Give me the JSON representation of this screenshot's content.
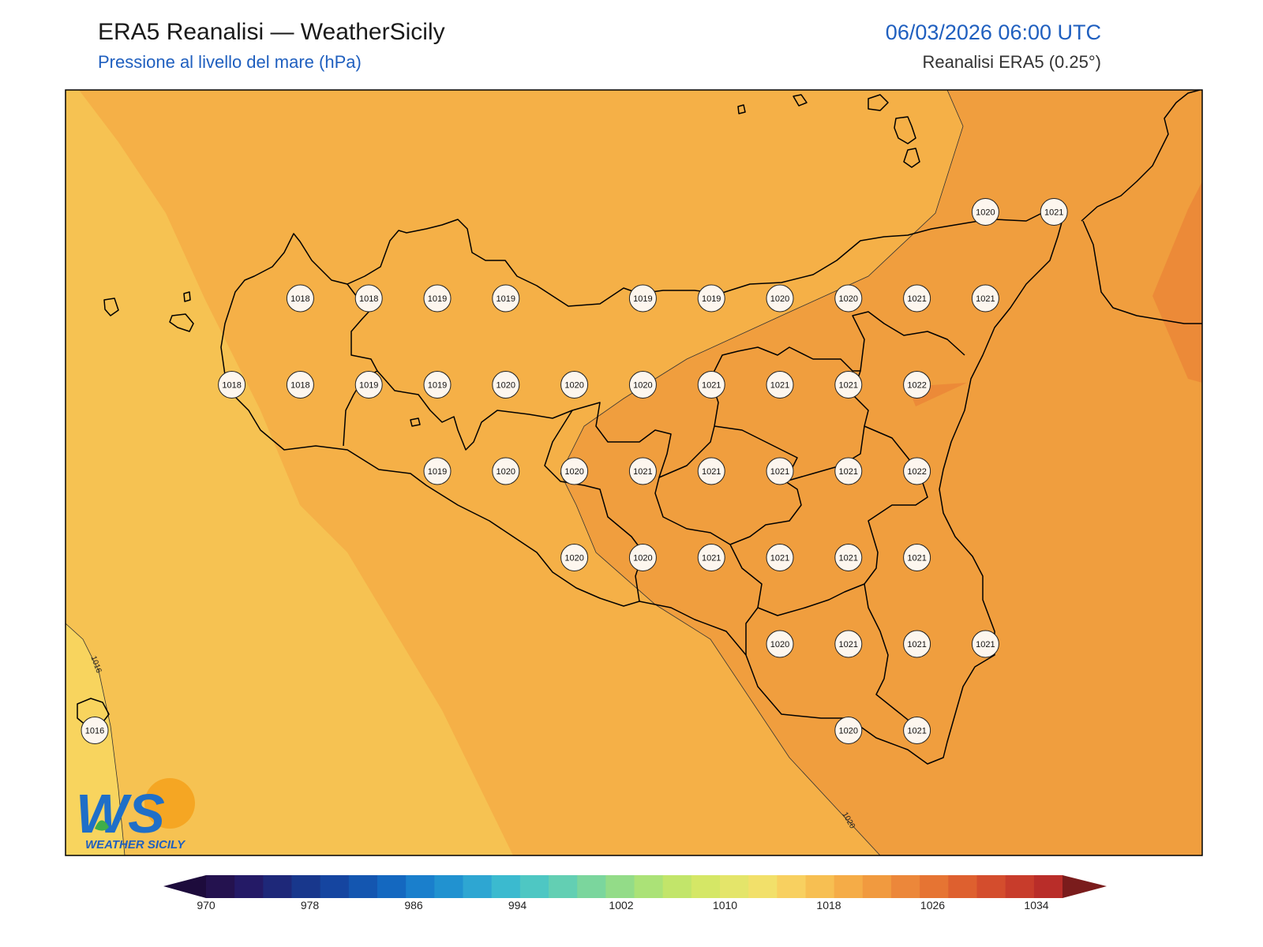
{
  "header": {
    "title": "ERA5 Reanalisi — WeatherSicily",
    "subtitle": "Pressione al livello del mare (hPa)",
    "datetime": "06/03/2026 06:00 UTC",
    "source": "Reanalisi ERA5 (0.25°)"
  },
  "logo": {
    "letters": "WS",
    "text": "WEATHER SICILY"
  },
  "colorbar": {
    "ticks": [
      "970",
      "978",
      "986",
      "994",
      "1002",
      "1010",
      "1018",
      "1026",
      "1034"
    ],
    "colors": [
      "#24124f",
      "#241a66",
      "#1e2879",
      "#18378c",
      "#1545a0",
      "#1456b0",
      "#1468c0",
      "#1a7fcc",
      "#2192d0",
      "#2ea6d2",
      "#3bbacf",
      "#4ec7c3",
      "#63cfb3",
      "#7bd69d",
      "#93dc88",
      "#abe277",
      "#c2e56a",
      "#d5e766",
      "#e4e56a",
      "#f2e06a",
      "#f8d060",
      "#f7bf52",
      "#f5ac47",
      "#f19a3f",
      "#ec873a",
      "#e67433",
      "#de602f",
      "#d44d2d",
      "#c83c2b",
      "#b92d29"
    ],
    "under_color": "#1d0b3c",
    "over_color": "#7a1c1c"
  },
  "map": {
    "contour_labels": [
      "1016",
      "1020"
    ],
    "stations": [
      {
        "value": "1018",
        "row": 0,
        "col": 3
      },
      {
        "value": "1018",
        "row": 0,
        "col": 4
      },
      {
        "value": "1019",
        "row": 0,
        "col": 5
      },
      {
        "value": "1019",
        "row": 0,
        "col": 6
      },
      {
        "value": "1019",
        "row": 0,
        "col": 8
      },
      {
        "value": "1019",
        "row": 0,
        "col": 9
      },
      {
        "value": "1020",
        "row": 0,
        "col": 10
      },
      {
        "value": "1020",
        "row": 0,
        "col": 11
      },
      {
        "value": "1021",
        "row": 0,
        "col": 12
      },
      {
        "value": "1021",
        "row": 0,
        "col": 13
      },
      {
        "value": "1020",
        "row": -1,
        "col": 13
      },
      {
        "value": "1021",
        "row": -1,
        "col": 14
      },
      {
        "value": "1018",
        "row": 1,
        "col": 2
      },
      {
        "value": "1018",
        "row": 1,
        "col": 3
      },
      {
        "value": "1019",
        "row": 1,
        "col": 4
      },
      {
        "value": "1019",
        "row": 1,
        "col": 5
      },
      {
        "value": "1020",
        "row": 1,
        "col": 6
      },
      {
        "value": "1020",
        "row": 1,
        "col": 7
      },
      {
        "value": "1020",
        "row": 1,
        "col": 8
      },
      {
        "value": "1021",
        "row": 1,
        "col": 9
      },
      {
        "value": "1021",
        "row": 1,
        "col": 10
      },
      {
        "value": "1021",
        "row": 1,
        "col": 11
      },
      {
        "value": "1022",
        "row": 1,
        "col": 12
      },
      {
        "value": "1019",
        "row": 2,
        "col": 5
      },
      {
        "value": "1020",
        "row": 2,
        "col": 6
      },
      {
        "value": "1020",
        "row": 2,
        "col": 7
      },
      {
        "value": "1021",
        "row": 2,
        "col": 8
      },
      {
        "value": "1021",
        "row": 2,
        "col": 9
      },
      {
        "value": "1021",
        "row": 2,
        "col": 10
      },
      {
        "value": "1021",
        "row": 2,
        "col": 11
      },
      {
        "value": "1022",
        "row": 2,
        "col": 12
      },
      {
        "value": "1020",
        "row": 3,
        "col": 7
      },
      {
        "value": "1020",
        "row": 3,
        "col": 8
      },
      {
        "value": "1021",
        "row": 3,
        "col": 9
      },
      {
        "value": "1021",
        "row": 3,
        "col": 10
      },
      {
        "value": "1021",
        "row": 3,
        "col": 11
      },
      {
        "value": "1021",
        "row": 3,
        "col": 12
      },
      {
        "value": "1020",
        "row": 4,
        "col": 10
      },
      {
        "value": "1021",
        "row": 4,
        "col": 11
      },
      {
        "value": "1021",
        "row": 4,
        "col": 12
      },
      {
        "value": "1021",
        "row": 4,
        "col": 13
      },
      {
        "value": "1020",
        "row": 5,
        "col": 11
      },
      {
        "value": "1021",
        "row": 5,
        "col": 12
      },
      {
        "value": "1016",
        "row": 5,
        "col": 0
      }
    ]
  }
}
